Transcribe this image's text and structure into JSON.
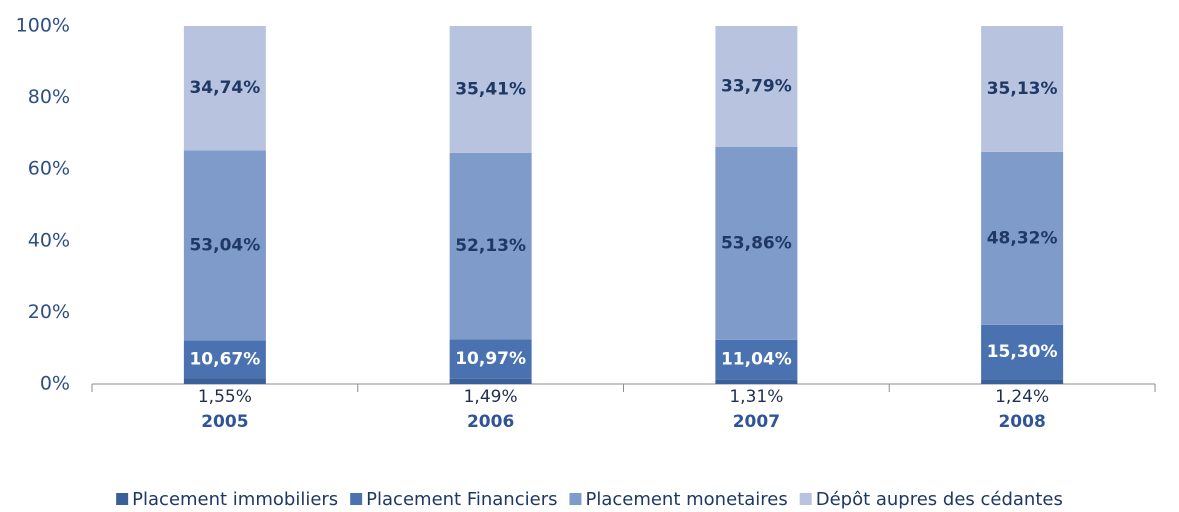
{
  "chart_data": {
    "type": "stacked_bar",
    "categories": [
      "2005",
      "2006",
      "2007",
      "2008"
    ],
    "series": [
      {
        "name": "Placement immobiliers",
        "color": "#3b5f98",
        "values": [
          1.55,
          1.49,
          1.31,
          1.24
        ],
        "value_labels": [
          "1,55%",
          "1,49%",
          "1,31%",
          "1,24%"
        ]
      },
      {
        "name": "Placement Financiers",
        "color": "#4a72b0",
        "values": [
          10.67,
          10.97,
          11.04,
          15.3
        ],
        "value_labels": [
          "10,67%",
          "10,97%",
          "11,04%",
          "15,30%"
        ]
      },
      {
        "name": "Placement monetaires",
        "color": "#7f9bc9",
        "values": [
          53.04,
          52.13,
          53.86,
          48.32
        ],
        "value_labels": [
          "53,04%",
          "52,13%",
          "53,86%",
          "48,32%"
        ]
      },
      {
        "name": "Dépôt aupres des cédantes",
        "color": "#b7c3df",
        "values": [
          34.74,
          35.41,
          33.79,
          35.13
        ],
        "value_labels": [
          "34,74%",
          "35,41%",
          "33,79%",
          "35,13%"
        ]
      }
    ],
    "ylim": [
      0,
      100
    ],
    "yticks": [
      {
        "value": 0,
        "label": "0%"
      },
      {
        "value": 20,
        "label": "20%"
      },
      {
        "value": 40,
        "label": "40%"
      },
      {
        "value": 60,
        "label": "60%"
      },
      {
        "value": 80,
        "label": "80%"
      },
      {
        "value": 100,
        "label": "100%"
      }
    ],
    "legend": "bottom"
  }
}
